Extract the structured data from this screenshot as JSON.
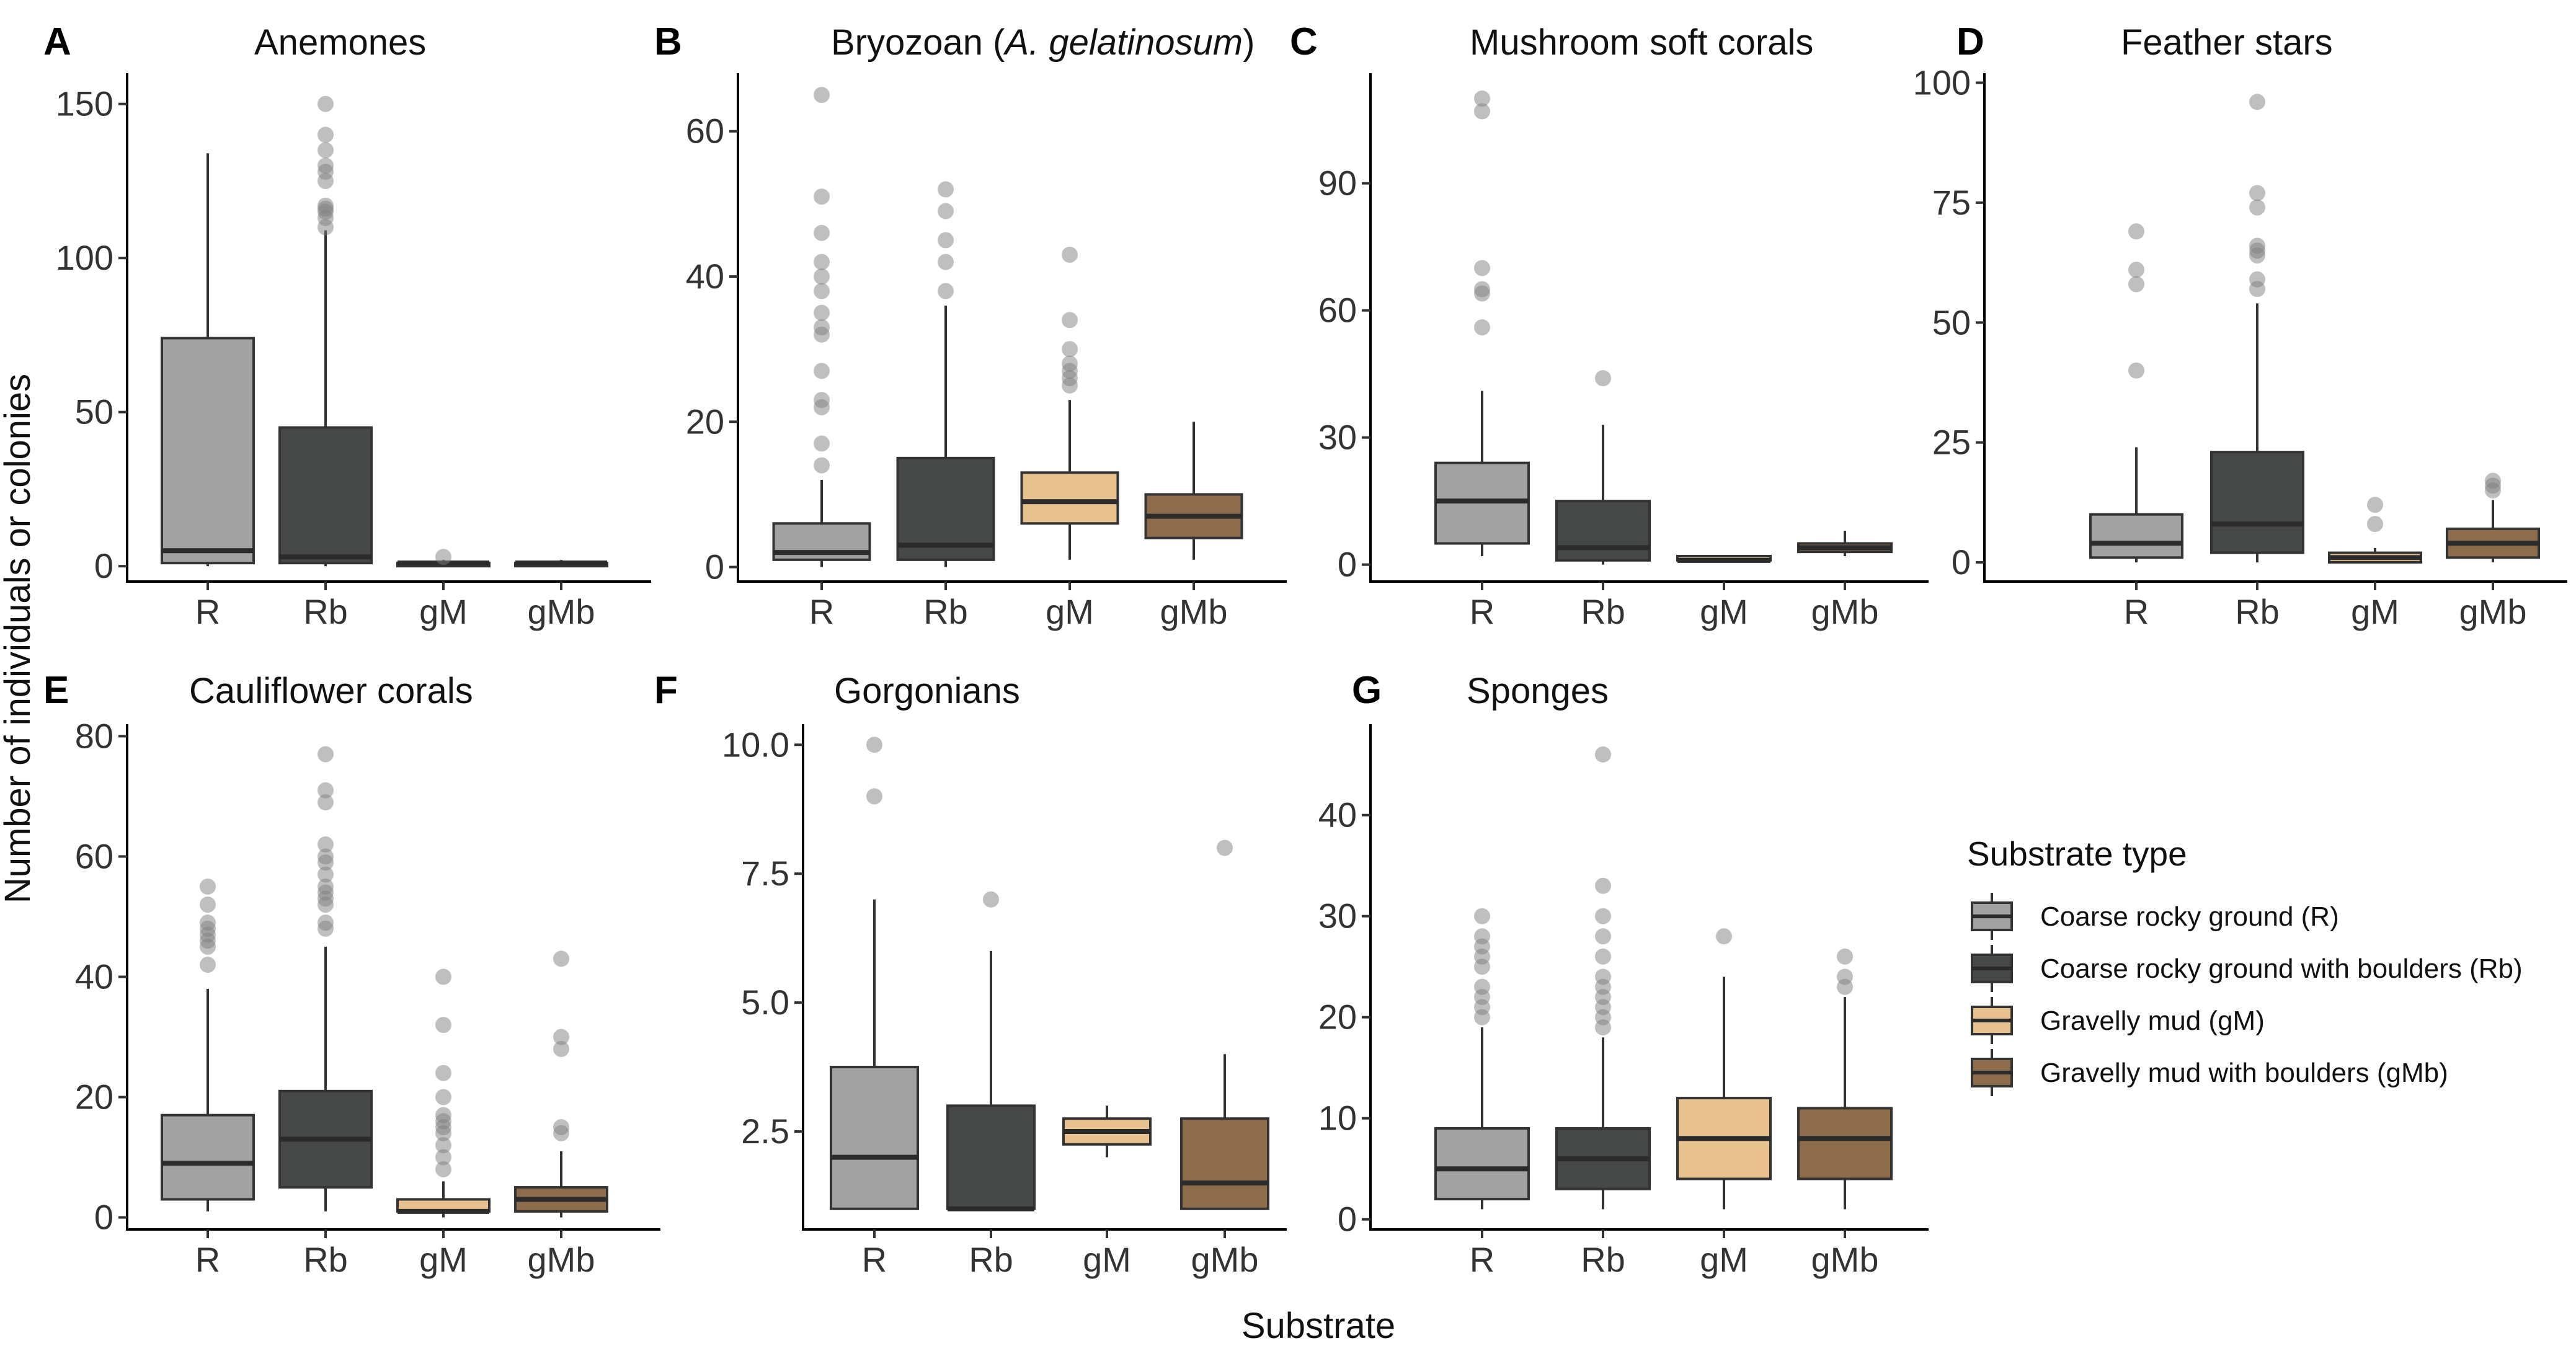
{
  "figure": {
    "ylabel": "Number of individuals or colonies",
    "xlabel": "Substrate"
  },
  "legend": {
    "title": "Substrate type",
    "items": [
      {
        "label": "Coarse rocky ground (R)",
        "color": "#a2a2a2"
      },
      {
        "label": "Coarse rocky ground with boulders (Rb)",
        "color": "#464747"
      },
      {
        "label": "Gravelly mud (gM)",
        "color": "#e8c28e"
      },
      {
        "label": "Gravelly mud with boulders (gMb)",
        "color": "#8d6c4c"
      }
    ]
  },
  "chart_data": [
    {
      "panel": "A",
      "type": "box",
      "title": "Anemones",
      "categories": [
        "R",
        "Rb",
        "gM",
        "gMb"
      ],
      "ylim": [
        -5,
        160
      ],
      "yticks": [
        0,
        50,
        100,
        150
      ],
      "boxes": [
        {
          "q1": 1,
          "median": 5,
          "q3": 74,
          "whisker_low": 0,
          "whisker_high": 134,
          "outliers": []
        },
        {
          "q1": 1,
          "median": 3,
          "q3": 45,
          "whisker_low": 0,
          "whisker_high": 109,
          "outliers": [
            110,
            113,
            115,
            116,
            117,
            125,
            128,
            130,
            135,
            140,
            150
          ]
        },
        {
          "q1": 0,
          "median": 1,
          "q3": 1,
          "whisker_low": 0,
          "whisker_high": 2,
          "outliers": [
            3
          ]
        },
        {
          "q1": 0,
          "median": 1,
          "q3": 1,
          "whisker_low": 0,
          "whisker_high": 2,
          "outliers": []
        }
      ]
    },
    {
      "panel": "B",
      "type": "box",
      "title": "Bryozoan (A. gelatinosum)",
      "title_plain": "Bryozoan (",
      "title_italic": "A. gelatinosum",
      "title_close": ")",
      "categories": [
        "R",
        "Rb",
        "gM",
        "gMb"
      ],
      "ylim": [
        -2,
        68
      ],
      "yticks": [
        0,
        20,
        40,
        60
      ],
      "boxes": [
        {
          "q1": 1,
          "median": 2,
          "q3": 6,
          "whisker_low": 0,
          "whisker_high": 12,
          "outliers": [
            14,
            17,
            22,
            23,
            27,
            32,
            33,
            35,
            38,
            40,
            42,
            46,
            51,
            65
          ]
        },
        {
          "q1": 1,
          "median": 3,
          "q3": 15,
          "whisker_low": 0,
          "whisker_high": 36,
          "outliers": [
            38,
            42,
            45,
            49,
            52
          ]
        },
        {
          "q1": 6,
          "median": 9,
          "q3": 13,
          "whisker_low": 1,
          "whisker_high": 23,
          "outliers": [
            25,
            26,
            27,
            28,
            30,
            34,
            43
          ]
        },
        {
          "q1": 4,
          "median": 7,
          "q3": 10,
          "whisker_low": 1,
          "whisker_high": 20,
          "outliers": []
        }
      ]
    },
    {
      "panel": "C",
      "type": "box",
      "title": "Mushroom soft corals",
      "categories": [
        "R",
        "Rb",
        "gM",
        "gMb"
      ],
      "ylim": [
        -4,
        116
      ],
      "yticks": [
        0,
        30,
        60,
        90
      ],
      "boxes": [
        {
          "q1": 5,
          "median": 15,
          "q3": 24,
          "whisker_low": 2,
          "whisker_high": 41,
          "outliers": [
            56,
            64,
            65,
            70,
            107,
            110
          ]
        },
        {
          "q1": 1,
          "median": 4,
          "q3": 15,
          "whisker_low": 0,
          "whisker_high": 33,
          "outliers": [
            44
          ]
        },
        {
          "q1": 1,
          "median": 1,
          "q3": 2,
          "whisker_low": 1,
          "whisker_high": 2,
          "outliers": []
        },
        {
          "q1": 3,
          "median": 4,
          "q3": 5,
          "whisker_low": 2,
          "whisker_high": 8,
          "outliers": []
        }
      ]
    },
    {
      "panel": "D",
      "type": "box",
      "title": "Feather stars",
      "categories": [
        "R",
        "Rb",
        "gM",
        "gMb"
      ],
      "ylim": [
        -4,
        102
      ],
      "yticks": [
        0,
        25,
        50,
        75,
        100
      ],
      "boxes": [
        {
          "q1": 1,
          "median": 4,
          "q3": 10,
          "whisker_low": 0,
          "whisker_high": 24,
          "outliers": [
            40,
            58,
            61,
            69
          ]
        },
        {
          "q1": 2,
          "median": 8,
          "q3": 23,
          "whisker_low": 0,
          "whisker_high": 54,
          "outliers": [
            57,
            59,
            64,
            65,
            66,
            74,
            77,
            96
          ]
        },
        {
          "q1": 0,
          "median": 1,
          "q3": 2,
          "whisker_low": 0,
          "whisker_high": 3,
          "outliers": [
            8,
            12
          ]
        },
        {
          "q1": 1,
          "median": 4,
          "q3": 7,
          "whisker_low": 0,
          "whisker_high": 13,
          "outliers": [
            15,
            16,
            17
          ]
        }
      ]
    },
    {
      "panel": "E",
      "type": "box",
      "title": "Cauliflower corals",
      "categories": [
        "R",
        "Rb",
        "gM",
        "gMb"
      ],
      "ylim": [
        -2,
        82
      ],
      "yticks": [
        0,
        20,
        40,
        60,
        80
      ],
      "boxes": [
        {
          "q1": 3,
          "median": 9,
          "q3": 17,
          "whisker_low": 1,
          "whisker_high": 38,
          "outliers": [
            42,
            45,
            46,
            47,
            48,
            49,
            52,
            55
          ]
        },
        {
          "q1": 5,
          "median": 13,
          "q3": 21,
          "whisker_low": 1,
          "whisker_high": 45,
          "outliers": [
            48,
            49,
            52,
            53,
            54,
            55,
            57,
            59,
            60,
            62,
            69,
            71,
            77
          ]
        },
        {
          "q1": 1,
          "median": 1,
          "q3": 3,
          "whisker_low": 0,
          "whisker_high": 6,
          "outliers": [
            8,
            10,
            12,
            14,
            15,
            16,
            17,
            20,
            24,
            32,
            40
          ]
        },
        {
          "q1": 1,
          "median": 3,
          "q3": 5,
          "whisker_low": 0,
          "whisker_high": 11,
          "outliers": [
            14,
            15,
            28,
            30,
            43
          ]
        }
      ]
    },
    {
      "panel": "F",
      "type": "box",
      "title": "Gorgonians",
      "categories": [
        "R",
        "Rb",
        "gM",
        "gMb"
      ],
      "ylim": [
        0.6,
        10.4
      ],
      "yticks": [
        2.5,
        5.0,
        7.5,
        10.0
      ],
      "ytick_labels": [
        "2.5",
        "5.0",
        "7.5",
        "10.0"
      ],
      "boxes": [
        {
          "q1": 1,
          "median": 2,
          "q3": 3.75,
          "whisker_low": 1,
          "whisker_high": 7,
          "outliers": [
            9,
            10
          ]
        },
        {
          "q1": 1,
          "median": 1,
          "q3": 3,
          "whisker_low": 1,
          "whisker_high": 6,
          "outliers": [
            7
          ]
        },
        {
          "q1": 2.25,
          "median": 2.5,
          "q3": 2.75,
          "whisker_low": 2,
          "whisker_high": 3,
          "outliers": []
        },
        {
          "q1": 1,
          "median": 1.5,
          "q3": 2.75,
          "whisker_low": 1,
          "whisker_high": 4,
          "outliers": [
            8
          ]
        }
      ]
    },
    {
      "panel": "G",
      "type": "box",
      "title": "Sponges",
      "categories": [
        "R",
        "Rb",
        "gM",
        "gMb"
      ],
      "ylim": [
        -1,
        49
      ],
      "yticks": [
        0,
        10,
        20,
        30,
        40
      ],
      "boxes": [
        {
          "q1": 2,
          "median": 5,
          "q3": 9,
          "whisker_low": 1,
          "whisker_high": 19,
          "outliers": [
            20,
            21,
            22,
            23,
            25,
            26,
            27,
            28,
            30
          ]
        },
        {
          "q1": 3,
          "median": 6,
          "q3": 9,
          "whisker_low": 1,
          "whisker_high": 18,
          "outliers": [
            19,
            20,
            21,
            22,
            23,
            24,
            26,
            28,
            30,
            33,
            46
          ]
        },
        {
          "q1": 4,
          "median": 8,
          "q3": 12,
          "whisker_low": 1,
          "whisker_high": 24,
          "outliers": [
            28
          ]
        },
        {
          "q1": 4,
          "median": 8,
          "q3": 11,
          "whisker_low": 1,
          "whisker_high": 22,
          "outliers": [
            23,
            24,
            26
          ]
        }
      ]
    }
  ]
}
